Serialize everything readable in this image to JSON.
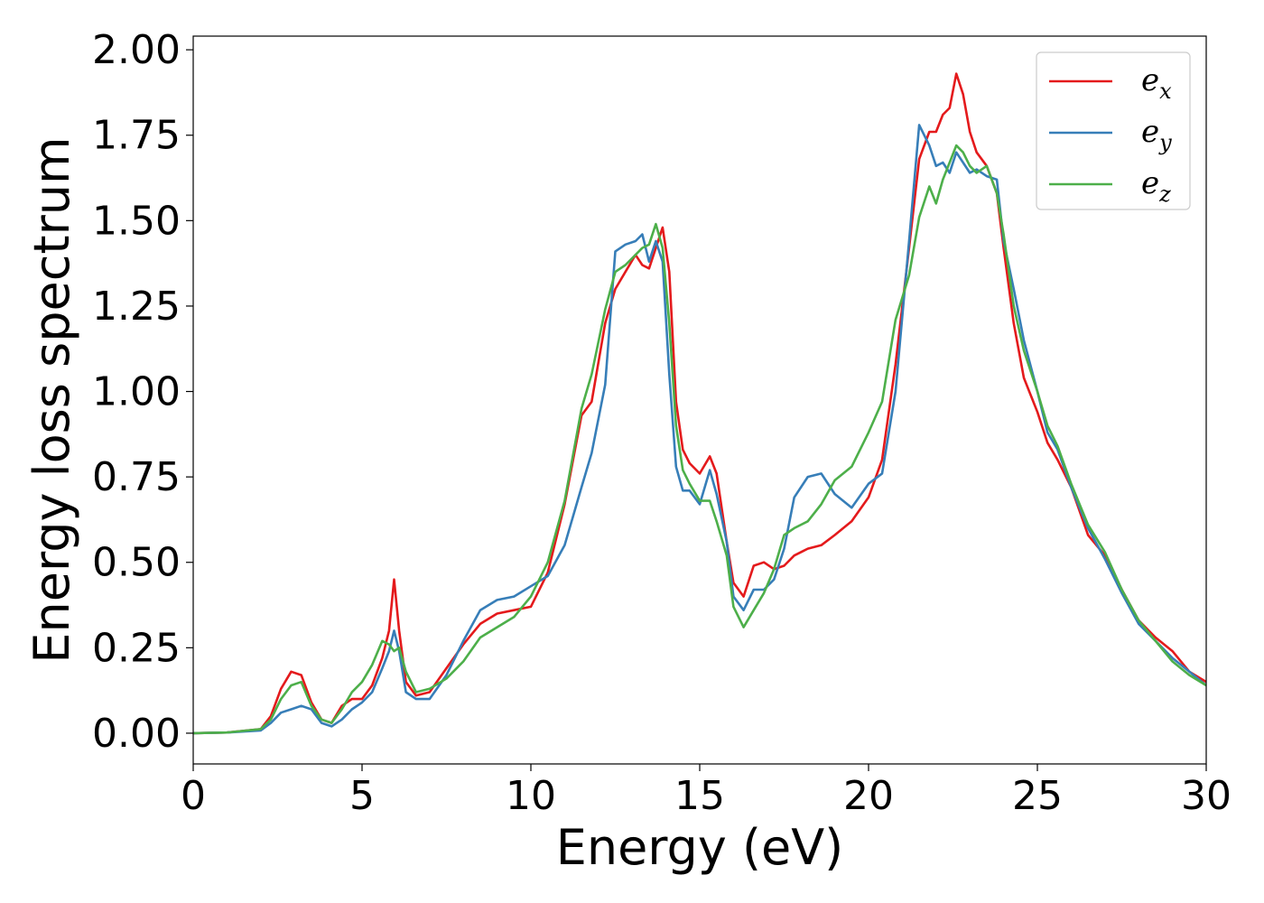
{
  "chart_data": {
    "type": "line",
    "title": "",
    "xlabel": "Energy (eV)",
    "ylabel": "Energy loss spectrum",
    "xlim": [
      0,
      30
    ],
    "ylim": [
      -0.09,
      2.04
    ],
    "xticks": [
      "0",
      "5",
      "10",
      "15",
      "20",
      "25",
      "30"
    ],
    "yticks": [
      "0.00",
      "0.25",
      "0.50",
      "0.75",
      "1.00",
      "1.25",
      "1.50",
      "1.75",
      "2.00"
    ],
    "grid": false,
    "legend_position": "top-right",
    "series": [
      {
        "name": "e",
        "subscript": "x",
        "color": "#e41a1c",
        "x": [
          0,
          1,
          2,
          2.3,
          2.6,
          2.9,
          3.2,
          3.5,
          3.8,
          4.1,
          4.4,
          4.7,
          5.0,
          5.3,
          5.6,
          5.8,
          5.95,
          6.1,
          6.3,
          6.6,
          7.0,
          7.5,
          8.0,
          8.5,
          9.0,
          9.5,
          10.0,
          10.5,
          11.0,
          11.5,
          11.8,
          12.2,
          12.5,
          12.8,
          13.1,
          13.3,
          13.5,
          13.7,
          13.9,
          14.1,
          14.3,
          14.5,
          14.7,
          15.0,
          15.3,
          15.5,
          15.8,
          16.0,
          16.3,
          16.6,
          16.9,
          17.2,
          17.5,
          17.8,
          18.2,
          18.6,
          19.0,
          19.5,
          20.0,
          20.4,
          20.8,
          21.2,
          21.5,
          21.8,
          22.0,
          22.2,
          22.4,
          22.6,
          22.8,
          23.0,
          23.2,
          23.5,
          23.8,
          24.0,
          24.3,
          24.6,
          25.0,
          25.3,
          25.6,
          26.0,
          26.5,
          27.0,
          27.5,
          28.0,
          28.5,
          29.0,
          29.5,
          30.0
        ],
        "y": [
          0.0,
          0.002,
          0.012,
          0.05,
          0.13,
          0.18,
          0.17,
          0.09,
          0.04,
          0.03,
          0.08,
          0.1,
          0.1,
          0.14,
          0.22,
          0.3,
          0.45,
          0.3,
          0.15,
          0.11,
          0.12,
          0.19,
          0.26,
          0.32,
          0.35,
          0.36,
          0.37,
          0.47,
          0.67,
          0.93,
          0.97,
          1.2,
          1.3,
          1.35,
          1.4,
          1.37,
          1.36,
          1.42,
          1.48,
          1.35,
          0.97,
          0.83,
          0.79,
          0.76,
          0.81,
          0.76,
          0.56,
          0.44,
          0.4,
          0.49,
          0.5,
          0.48,
          0.49,
          0.52,
          0.54,
          0.55,
          0.58,
          0.62,
          0.69,
          0.8,
          1.08,
          1.42,
          1.68,
          1.76,
          1.76,
          1.81,
          1.83,
          1.93,
          1.87,
          1.76,
          1.7,
          1.66,
          1.58,
          1.42,
          1.2,
          1.04,
          0.94,
          0.85,
          0.8,
          0.72,
          0.58,
          0.52,
          0.42,
          0.33,
          0.28,
          0.24,
          0.18,
          0.15
        ]
      },
      {
        "name": "e",
        "subscript": "y",
        "color": "#377eb8",
        "x": [
          0,
          1,
          2,
          2.3,
          2.6,
          2.9,
          3.2,
          3.5,
          3.8,
          4.1,
          4.4,
          4.7,
          5.0,
          5.3,
          5.6,
          5.8,
          5.95,
          6.1,
          6.3,
          6.6,
          7.0,
          7.5,
          8.0,
          8.5,
          9.0,
          9.5,
          10.0,
          10.5,
          11.0,
          11.5,
          11.8,
          12.2,
          12.5,
          12.8,
          13.1,
          13.3,
          13.5,
          13.7,
          13.9,
          14.1,
          14.3,
          14.5,
          14.7,
          15.0,
          15.3,
          15.5,
          15.8,
          16.0,
          16.3,
          16.6,
          16.9,
          17.2,
          17.5,
          17.8,
          18.2,
          18.6,
          19.0,
          19.5,
          20.0,
          20.4,
          20.8,
          21.2,
          21.5,
          21.8,
          22.0,
          22.2,
          22.4,
          22.6,
          22.8,
          23.0,
          23.2,
          23.5,
          23.8,
          24.0,
          24.3,
          24.6,
          25.0,
          25.3,
          25.6,
          26.0,
          26.5,
          27.0,
          27.5,
          28.0,
          28.5,
          29.0,
          29.5,
          30.0
        ],
        "y": [
          0.0,
          0.002,
          0.008,
          0.03,
          0.06,
          0.07,
          0.08,
          0.07,
          0.03,
          0.02,
          0.04,
          0.07,
          0.09,
          0.12,
          0.19,
          0.24,
          0.3,
          0.24,
          0.12,
          0.1,
          0.1,
          0.17,
          0.27,
          0.36,
          0.39,
          0.4,
          0.43,
          0.46,
          0.55,
          0.72,
          0.82,
          1.02,
          1.41,
          1.43,
          1.44,
          1.46,
          1.38,
          1.44,
          1.38,
          1.05,
          0.78,
          0.71,
          0.71,
          0.67,
          0.77,
          0.7,
          0.56,
          0.4,
          0.36,
          0.42,
          0.42,
          0.45,
          0.54,
          0.69,
          0.75,
          0.76,
          0.7,
          0.66,
          0.73,
          0.76,
          1.0,
          1.44,
          1.78,
          1.72,
          1.66,
          1.67,
          1.64,
          1.7,
          1.67,
          1.64,
          1.65,
          1.63,
          1.62,
          1.44,
          1.3,
          1.15,
          1.0,
          0.88,
          0.83,
          0.72,
          0.6,
          0.51,
          0.41,
          0.32,
          0.27,
          0.22,
          0.18,
          0.14
        ]
      },
      {
        "name": "e",
        "subscript": "z",
        "color": "#4daf4a",
        "x": [
          0,
          1,
          2,
          2.3,
          2.6,
          2.9,
          3.2,
          3.5,
          3.8,
          4.1,
          4.4,
          4.7,
          5.0,
          5.3,
          5.6,
          5.8,
          5.95,
          6.1,
          6.3,
          6.6,
          7.0,
          7.5,
          8.0,
          8.5,
          9.0,
          9.5,
          10.0,
          10.5,
          11.0,
          11.5,
          11.8,
          12.2,
          12.5,
          12.8,
          13.1,
          13.3,
          13.5,
          13.7,
          13.9,
          14.1,
          14.3,
          14.5,
          14.7,
          15.0,
          15.3,
          15.5,
          15.8,
          16.0,
          16.3,
          16.6,
          16.9,
          17.2,
          17.5,
          17.8,
          18.2,
          18.6,
          19.0,
          19.5,
          20.0,
          20.4,
          20.8,
          21.2,
          21.5,
          21.8,
          22.0,
          22.2,
          22.4,
          22.6,
          22.8,
          23.0,
          23.2,
          23.5,
          23.8,
          24.0,
          24.3,
          24.6,
          25.0,
          25.3,
          25.6,
          26.0,
          26.5,
          27.0,
          27.5,
          28.0,
          28.5,
          29.0,
          29.5,
          30.0
        ],
        "y": [
          0.0,
          0.002,
          0.012,
          0.04,
          0.1,
          0.14,
          0.15,
          0.08,
          0.04,
          0.03,
          0.07,
          0.12,
          0.15,
          0.2,
          0.27,
          0.26,
          0.24,
          0.25,
          0.18,
          0.12,
          0.13,
          0.16,
          0.21,
          0.28,
          0.31,
          0.34,
          0.4,
          0.5,
          0.68,
          0.95,
          1.05,
          1.24,
          1.35,
          1.37,
          1.4,
          1.42,
          1.43,
          1.49,
          1.42,
          1.2,
          0.9,
          0.77,
          0.73,
          0.68,
          0.68,
          0.62,
          0.52,
          0.37,
          0.31,
          0.36,
          0.41,
          0.48,
          0.58,
          0.6,
          0.62,
          0.67,
          0.74,
          0.78,
          0.88,
          0.97,
          1.21,
          1.34,
          1.51,
          1.6,
          1.55,
          1.62,
          1.67,
          1.72,
          1.7,
          1.66,
          1.64,
          1.66,
          1.58,
          1.46,
          1.25,
          1.12,
          1.0,
          0.9,
          0.84,
          0.73,
          0.61,
          0.53,
          0.42,
          0.33,
          0.27,
          0.21,
          0.17,
          0.14
        ]
      }
    ]
  }
}
